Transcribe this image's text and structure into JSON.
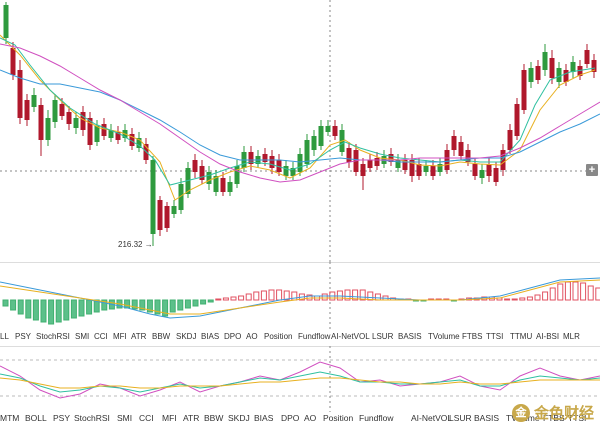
{
  "price_chart": {
    "low_label": "216.32 →",
    "add_button": "+",
    "colors": {
      "up": "#2e9a3e",
      "down": "#b0182c",
      "ma_yellow": "#e8b020",
      "ma_green": "#2fc0a0",
      "ma_blue": "#3a9ad9",
      "ma_pink": "#d050c0",
      "crosshair": "#888888"
    }
  },
  "indicator_tabs_1": [
    "LL",
    "PSY",
    "StochRSI",
    "SMI",
    "CCI",
    "MFI",
    "ATR",
    "BBW",
    "SKDJ",
    "BIAS",
    "DPO",
    "AO",
    "Position",
    "Fundflow",
    "AI-NetVOL",
    "LSUR",
    "BASIS",
    "TVolume",
    "FTBS",
    "TTSI",
    "TTMU",
    "AI-BSI",
    "MLR"
  ],
  "indicator_tabs_2": [
    "MTM",
    "BOLL",
    "PSY",
    "StochRSI",
    "SMI",
    "CCI",
    "MFI",
    "ATR",
    "BBW",
    "SKDJ",
    "BIAS",
    "DPO",
    "AO",
    "Position",
    "Fundflow",
    "AI-NetVOL",
    "LSUR",
    "BASIS",
    "TVolume",
    "FTBS",
    "TTSI"
  ],
  "watermark": {
    "logo": "金",
    "text": "金色财经"
  }
}
